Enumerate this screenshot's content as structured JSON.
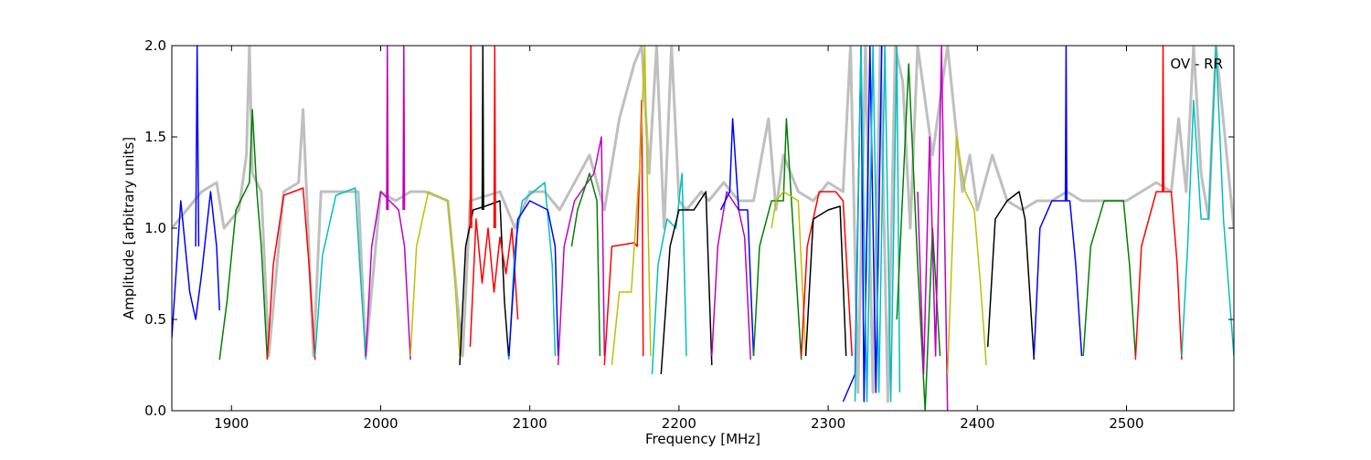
{
  "chart_data": {
    "type": "line",
    "title": "",
    "annotation": "OV - RR",
    "xlabel": "Frequency [MHz]",
    "ylabel": "Amplitude [arbitrary units]",
    "xlim": [
      1860,
      2572
    ],
    "ylim": [
      0.0,
      2.0
    ],
    "x_ticks": [
      1900,
      2000,
      2100,
      2200,
      2300,
      2400,
      2500
    ],
    "x_tick_labels": [
      "1900",
      "2000",
      "2100",
      "2200",
      "2300",
      "2400",
      "2500"
    ],
    "y_ticks": [
      0.0,
      0.5,
      1.0,
      1.5,
      2.0
    ],
    "y_tick_labels": [
      "0.0",
      "0.5",
      "1.0",
      "1.5",
      "2.0"
    ],
    "grid": false,
    "legend": "none",
    "colors": {
      "background_envelope": "#bfbfbf",
      "b": "#0000ff",
      "g": "#008000",
      "r": "#ff0000",
      "c": "#00bfbf",
      "m": "#bf00bf",
      "y": "#bfbf00",
      "k": "#000000"
    },
    "series": [
      {
        "color_key": "background_envelope",
        "role": "envelope",
        "x": [
          1860,
          1880,
          1890,
          1895,
          1905,
          1910,
          1912,
          1914,
          1920,
          1925,
          1935,
          1945,
          1948,
          1955,
          1960,
          1975,
          1985,
          1990,
          2000,
          2010,
          2020,
          2030,
          2045,
          2055,
          2060,
          2080,
          2090,
          2100,
          2110,
          2120,
          2130,
          2140,
          2150,
          2160,
          2170,
          2175,
          2180,
          2185,
          2190,
          2195,
          2200,
          2205,
          2215,
          2220,
          2230,
          2240,
          2250,
          2260,
          2265,
          2270,
          2280,
          2290,
          2300,
          2310,
          2315,
          2320,
          2325,
          2330,
          2335,
          2340,
          2345,
          2350,
          2355,
          2360,
          2370,
          2380,
          2385,
          2390,
          2395,
          2400,
          2410,
          2420,
          2430,
          2440,
          2450,
          2460,
          2470,
          2480,
          2490,
          2500,
          2510,
          2520,
          2530,
          2535,
          2540,
          2545,
          2550,
          2555,
          2560,
          2572
        ],
        "y": [
          1.0,
          1.2,
          1.25,
          1.0,
          1.1,
          1.4,
          2.0,
          1.3,
          1.2,
          0.3,
          1.2,
          1.25,
          1.65,
          0.3,
          1.2,
          1.2,
          1.2,
          0.3,
          1.2,
          1.15,
          1.2,
          1.2,
          1.15,
          0.3,
          1.15,
          1.2,
          1.0,
          1.2,
          1.2,
          1.1,
          1.25,
          1.4,
          1.1,
          1.6,
          1.9,
          2.0,
          1.3,
          2.0,
          1.0,
          2.0,
          1.15,
          1.1,
          1.2,
          1.15,
          1.25,
          1.15,
          1.15,
          1.6,
          1.1,
          1.4,
          1.2,
          1.15,
          1.25,
          1.2,
          2.0,
          0.1,
          2.0,
          0.1,
          2.0,
          0.05,
          2.0,
          1.8,
          1.0,
          2.0,
          1.4,
          2.0,
          1.6,
          1.2,
          1.4,
          1.1,
          1.4,
          1.15,
          1.1,
          1.15,
          1.15,
          1.2,
          1.15,
          1.15,
          1.15,
          1.15,
          1.2,
          1.25,
          1.2,
          1.6,
          1.2,
          2.0,
          1.3,
          1.05,
          2.0,
          1.0
        ]
      },
      {
        "color_key": "b",
        "x": [
          1860,
          1866,
          1872,
          1876,
          1880,
          1886,
          1890,
          1892
        ],
        "y": [
          0.4,
          1.15,
          0.65,
          0.5,
          0.75,
          1.2,
          0.9,
          0.55
        ]
      },
      {
        "color_key": "b",
        "x": [
          1876,
          1877,
          1878
        ],
        "y": [
          0.9,
          2.0,
          0.9
        ]
      },
      {
        "color_key": "g",
        "x": [
          1892,
          1897,
          1903,
          1912,
          1914,
          1917,
          1920,
          1924
        ],
        "y": [
          0.28,
          0.6,
          1.1,
          1.25,
          1.65,
          1.2,
          0.9,
          0.28
        ]
      },
      {
        "color_key": "r",
        "x": [
          1924,
          1928,
          1935,
          1948,
          1952,
          1956
        ],
        "y": [
          0.28,
          0.8,
          1.18,
          1.22,
          0.8,
          0.28
        ]
      },
      {
        "color_key": "c",
        "x": [
          1956,
          1961,
          1970,
          1983,
          1986,
          1990
        ],
        "y": [
          0.3,
          0.85,
          1.18,
          1.22,
          0.8,
          0.28
        ]
      },
      {
        "color_key": "m",
        "x": [
          1990,
          1994,
          2000,
          2012,
          2016,
          2020
        ],
        "y": [
          0.3,
          0.9,
          1.2,
          1.1,
          0.9,
          0.28
        ]
      },
      {
        "color_key": "m",
        "x": [
          2004,
          2004.5,
          2005
        ],
        "y": [
          1.1,
          2.0,
          1.1
        ]
      },
      {
        "color_key": "m",
        "x": [
          2015,
          2015.5,
          2016
        ],
        "y": [
          1.1,
          2.0,
          1.1
        ]
      },
      {
        "color_key": "y",
        "x": [
          2020,
          2024,
          2032,
          2045,
          2049,
          2053
        ],
        "y": [
          0.3,
          0.9,
          1.2,
          1.15,
          0.8,
          0.3
        ]
      },
      {
        "color_key": "k",
        "x": [
          2053,
          2057,
          2062,
          2070,
          2080,
          2083,
          2086
        ],
        "y": [
          0.25,
          0.9,
          1.1,
          1.12,
          1.15,
          0.6,
          0.28
        ]
      },
      {
        "color_key": "k",
        "x": [
          2068,
          2068.5,
          2069
        ],
        "y": [
          1.1,
          2.0,
          1.1
        ]
      },
      {
        "color_key": "r",
        "x": [
          2060,
          2064,
          2068,
          2072,
          2076,
          2080,
          2084,
          2088,
          2092
        ],
        "y": [
          0.35,
          1.05,
          0.7,
          1.0,
          0.65,
          0.95,
          0.75,
          1.0,
          0.5
        ]
      },
      {
        "color_key": "r",
        "x": [
          2060,
          2060.5,
          2061
        ],
        "y": [
          1.0,
          2.0,
          1.0
        ]
      },
      {
        "color_key": "r",
        "x": [
          2076,
          2076.5,
          2077
        ],
        "y": [
          1.0,
          2.0,
          1.0
        ]
      },
      {
        "color_key": "c",
        "x": [
          2086,
          2090,
          2095,
          2110,
          2115,
          2117
        ],
        "y": [
          0.28,
          0.9,
          1.15,
          1.25,
          0.8,
          0.3
        ]
      },
      {
        "color_key": "b",
        "x": [
          2086,
          2092,
          2100,
          2112,
          2117,
          2119
        ],
        "y": [
          0.3,
          1.05,
          1.15,
          1.1,
          0.9,
          0.3
        ]
      },
      {
        "color_key": "m",
        "x": [
          2119,
          2123,
          2130,
          2143,
          2148,
          2150
        ],
        "y": [
          0.25,
          0.9,
          1.15,
          1.3,
          1.5,
          0.3
        ]
      },
      {
        "color_key": "g",
        "x": [
          2128,
          2132,
          2140,
          2145,
          2147
        ],
        "y": [
          0.9,
          1.1,
          1.3,
          1.15,
          0.3
        ]
      },
      {
        "color_key": "r",
        "x": [
          2150,
          2155,
          2170,
          2172,
          2175,
          2176
        ],
        "y": [
          0.25,
          0.9,
          0.92,
          0.9,
          1.7,
          0.3
        ]
      },
      {
        "color_key": "y",
        "x": [
          2155,
          2160,
          2168,
          2174,
          2177,
          2181
        ],
        "y": [
          0.25,
          0.65,
          0.65,
          1.4,
          2.0,
          0.3
        ]
      },
      {
        "color_key": "c",
        "x": [
          2182,
          2186,
          2192,
          2198,
          2202,
          2205
        ],
        "y": [
          0.2,
          0.8,
          1.05,
          1.0,
          1.3,
          0.3
        ]
      },
      {
        "color_key": "k",
        "x": [
          2188,
          2194,
          2200,
          2210,
          2218,
          2222
        ],
        "y": [
          0.2,
          0.9,
          1.1,
          1.1,
          1.2,
          0.25
        ]
      },
      {
        "color_key": "m",
        "x": [
          2222,
          2226,
          2232,
          2240,
          2244,
          2248
        ],
        "y": [
          0.3,
          0.9,
          1.2,
          1.1,
          0.95,
          0.28
        ]
      },
      {
        "color_key": "b",
        "x": [
          2228,
          2234,
          2236,
          2240,
          2246,
          2250
        ],
        "y": [
          1.1,
          1.2,
          1.6,
          1.1,
          1.1,
          0.3
        ]
      },
      {
        "color_key": "g",
        "x": [
          2250,
          2254,
          2262,
          2270,
          2272,
          2275,
          2282
        ],
        "y": [
          0.3,
          0.9,
          1.15,
          1.15,
          1.6,
          1.2,
          0.28
        ]
      },
      {
        "color_key": "y",
        "x": [
          2262,
          2265,
          2270,
          2280,
          2285
        ],
        "y": [
          1.0,
          1.15,
          1.2,
          1.15,
          0.3
        ]
      },
      {
        "color_key": "r",
        "x": [
          2282,
          2286,
          2294,
          2305,
          2310,
          2316
        ],
        "y": [
          0.3,
          0.9,
          1.2,
          1.2,
          1.15,
          0.3
        ]
      },
      {
        "color_key": "k",
        "x": [
          2285,
          2290,
          2300,
          2308,
          2312
        ],
        "y": [
          0.3,
          1.05,
          1.1,
          1.12,
          0.3
        ]
      },
      {
        "color_key": "b",
        "x": [
          2310,
          2318,
          2322,
          2324,
          2328,
          2332,
          2336
        ],
        "y": [
          0.05,
          0.2,
          2.0,
          0.05,
          2.0,
          0.1,
          2.0
        ]
      },
      {
        "color_key": "c",
        "x": [
          2318,
          2322,
          2326,
          2330,
          2334,
          2338,
          2342,
          2346,
          2348
        ],
        "y": [
          0.05,
          2.0,
          0.05,
          2.0,
          0.1,
          2.0,
          0.05,
          2.0,
          0.1
        ]
      },
      {
        "color_key": "g",
        "x": [
          2346,
          2350,
          2354,
          2360,
          2365,
          2370,
          2375
        ],
        "y": [
          0.5,
          1.2,
          1.9,
          0.8,
          0.0,
          1.0,
          0.3
        ]
      },
      {
        "color_key": "m",
        "x": [
          2360,
          2364,
          2368,
          2372,
          2376,
          2380
        ],
        "y": [
          1.2,
          0.2,
          1.5,
          0.3,
          2.0,
          0.0
        ]
      },
      {
        "color_key": "y",
        "x": [
          2380,
          2386,
          2392,
          2398,
          2402,
          2406
        ],
        "y": [
          0.2,
          1.5,
          1.2,
          1.1,
          0.7,
          0.25
        ]
      },
      {
        "color_key": "k",
        "x": [
          2407,
          2412,
          2420,
          2428,
          2432,
          2438
        ],
        "y": [
          0.35,
          1.05,
          1.15,
          1.2,
          1.05,
          0.28
        ]
      },
      {
        "color_key": "b",
        "x": [
          2438,
          2442,
          2450,
          2462,
          2466,
          2470
        ],
        "y": [
          0.3,
          1.0,
          1.15,
          1.15,
          0.8,
          0.3
        ]
      },
      {
        "color_key": "b",
        "x": [
          2459,
          2459.5,
          2460
        ],
        "y": [
          1.15,
          2.0,
          1.15
        ]
      },
      {
        "color_key": "g",
        "x": [
          2471,
          2476,
          2485,
          2498,
          2502,
          2506
        ],
        "y": [
          0.3,
          0.9,
          1.15,
          1.15,
          0.8,
          0.3
        ]
      },
      {
        "color_key": "r",
        "x": [
          2506,
          2510,
          2520,
          2530,
          2534,
          2537
        ],
        "y": [
          0.28,
          0.9,
          1.2,
          1.2,
          0.8,
          0.28
        ]
      },
      {
        "color_key": "r",
        "x": [
          2524,
          2524.5,
          2525
        ],
        "y": [
          1.2,
          2.0,
          1.2
        ]
      },
      {
        "color_key": "c",
        "x": [
          2537,
          2541,
          2545,
          2550,
          2555,
          2560,
          2565,
          2572
        ],
        "y": [
          0.3,
          0.9,
          1.7,
          1.05,
          1.05,
          2.0,
          1.05,
          0.3
        ]
      }
    ]
  }
}
